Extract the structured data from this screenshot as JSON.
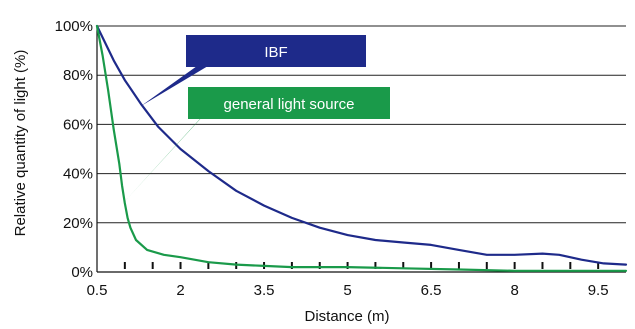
{
  "chart_data": {
    "type": "line",
    "xlabel": "Distance (m)",
    "ylabel": "Relative quantity of light (%)",
    "xlim": [
      0.5,
      10
    ],
    "ylim": [
      0,
      100
    ],
    "x_tick_labels": [
      "0.5",
      "2",
      "3.5",
      "5",
      "6.5",
      "8",
      "9.5"
    ],
    "x_tick_values": [
      0.5,
      2,
      3.5,
      5,
      6.5,
      8,
      9.5
    ],
    "x_minor_ticks": [
      1,
      1.5,
      2,
      2.5,
      3,
      3.5,
      4,
      4.5,
      5,
      5.5,
      6,
      6.5,
      7,
      7.5,
      8,
      8.5,
      9,
      9.5
    ],
    "y_tick_labels": [
      "0%",
      "20%",
      "40%",
      "60%",
      "80%",
      "100%"
    ],
    "y_tick_values": [
      0,
      20,
      40,
      60,
      80,
      100
    ],
    "grid": "horizontal",
    "series": [
      {
        "name": "IBF",
        "color": "#1e2a8a",
        "x": [
          0.5,
          0.8,
          1.0,
          1.3,
          1.6,
          2.0,
          2.5,
          3.0,
          3.5,
          4.0,
          4.5,
          5.0,
          5.5,
          6.0,
          6.5,
          7.0,
          7.5,
          8.0,
          8.5,
          8.8,
          9.2,
          9.6,
          10.0
        ],
        "values": [
          100,
          86,
          78,
          68,
          59,
          50,
          41,
          33,
          27,
          22,
          18,
          15,
          13,
          12,
          11,
          9,
          7,
          7,
          7.5,
          7,
          5,
          3.5,
          3
        ]
      },
      {
        "name": "general light source",
        "color": "#1a9a4a",
        "x": [
          0.5,
          0.6,
          0.7,
          0.8,
          0.9,
          0.95,
          1.0,
          1.05,
          1.1,
          1.2,
          1.4,
          1.7,
          2.0,
          2.5,
          3.0,
          3.5,
          4.0,
          5.0,
          6.0,
          7.0,
          8.0,
          9.0,
          10.0
        ],
        "values": [
          100,
          88,
          74,
          58,
          44,
          35,
          28,
          22,
          18,
          13,
          9,
          7,
          6,
          4,
          3,
          2.5,
          2,
          2,
          1.5,
          1,
          0.5,
          0.5,
          0.5
        ]
      }
    ],
    "annotations": [
      {
        "label": "IBF",
        "series": "IBF",
        "fill": "#1e2a8a"
      },
      {
        "label": "general light source",
        "series": "general light source",
        "fill": "#1a9a4a"
      }
    ]
  }
}
